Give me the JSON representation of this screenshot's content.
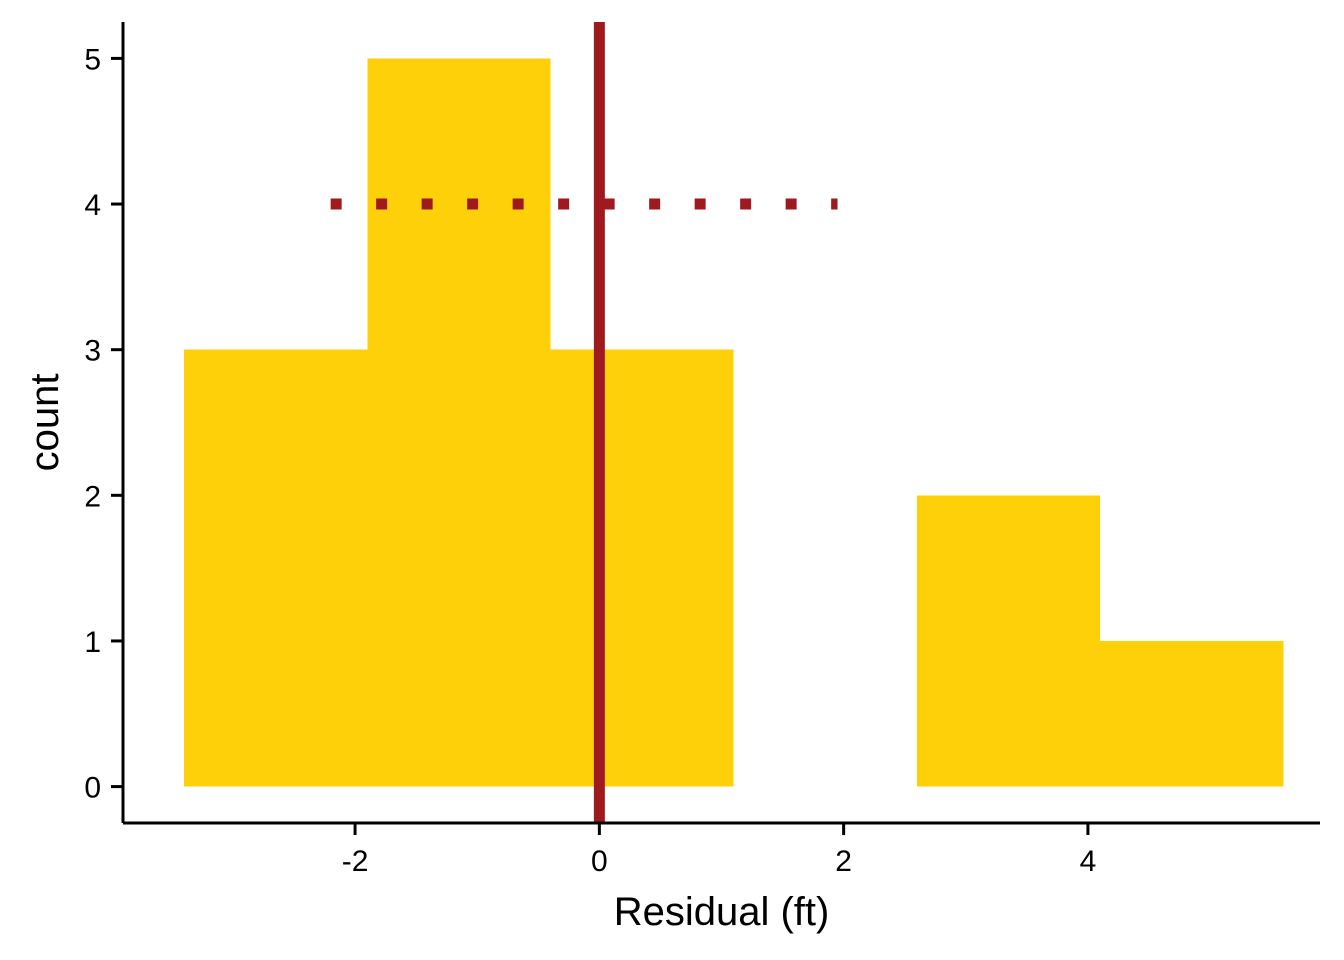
{
  "chart_data": {
    "type": "bar",
    "subtype": "histogram",
    "xlabel": "Residual (ft)",
    "ylabel": "count",
    "bins": [
      {
        "x0": -3.4,
        "x1": -1.9,
        "count": 3
      },
      {
        "x0": -1.9,
        "x1": -0.4,
        "count": 5
      },
      {
        "x0": -0.4,
        "x1": 1.1,
        "count": 3
      },
      {
        "x0": 1.1,
        "x1": 2.6,
        "count": 0
      },
      {
        "x0": 2.6,
        "x1": 4.1,
        "count": 2
      },
      {
        "x0": 4.1,
        "x1": 5.6,
        "count": 1
      }
    ],
    "x_ticks": [
      -2,
      0,
      2,
      4
    ],
    "x_tick_labels": [
      "-2",
      "0",
      "2",
      "4"
    ],
    "y_ticks": [
      0,
      1,
      2,
      3,
      4,
      5
    ],
    "y_tick_labels": [
      "0",
      "1",
      "2",
      "3",
      "4",
      "5"
    ],
    "xlim": [
      -3.9,
      5.9
    ],
    "ylim": [
      -0.25,
      5.25
    ],
    "annotations": [
      {
        "type": "vline",
        "x": 0,
        "style": "solid",
        "color": "#9E1A1E"
      },
      {
        "type": "segment",
        "x_start": -2.2,
        "x_end": 1.95,
        "y": 4,
        "style": "dotted",
        "color": "#9E1A1E"
      }
    ],
    "grid": false,
    "legend": "none",
    "bar_color": "#FDD00A"
  }
}
